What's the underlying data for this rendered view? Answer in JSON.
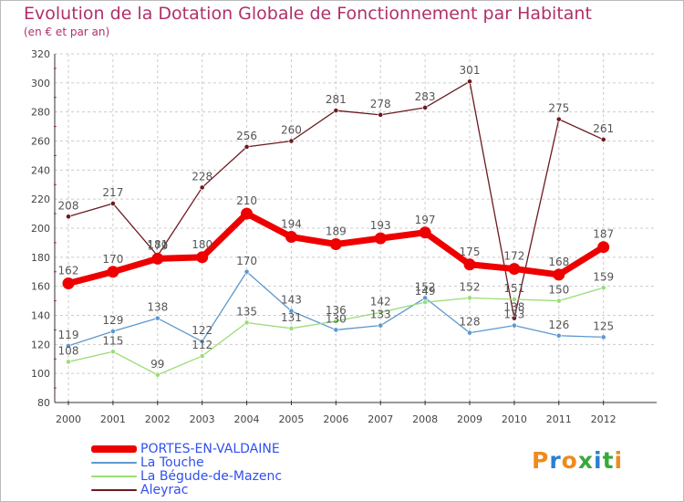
{
  "chart_data": {
    "type": "line",
    "title": "Evolution de la Dotation Globale de Fonctionnement par Habitant",
    "subtitle": "(en € et par an)",
    "xlabel": "",
    "ylabel": "",
    "x": [
      "2000",
      "2001",
      "2002",
      "2003",
      "2004",
      "2005",
      "2006",
      "2007",
      "2008",
      "2009",
      "2010",
      "2011",
      "2012"
    ],
    "ylim": [
      80,
      320
    ],
    "yticks": [
      "80",
      "100",
      "120",
      "140",
      "160",
      "180",
      "200",
      "220",
      "240",
      "260",
      "280",
      "300",
      "320"
    ],
    "grid": true,
    "legend_position": "bottom-left",
    "series": [
      {
        "name": "Aleyrac",
        "color": "#6b1a20",
        "values": [
          208,
          217,
          181,
          228,
          256,
          260,
          281,
          278,
          283,
          301,
          138,
          275,
          261
        ],
        "labels": [
          "208",
          "217",
          "181",
          "228",
          "256",
          "260",
          "281",
          "278",
          "283",
          "301",
          "138",
          "275",
          "261"
        ]
      },
      {
        "name": "La Touche",
        "color": "#5e98cc",
        "values": [
          119,
          129,
          138,
          122,
          170,
          143,
          130,
          133,
          152,
          128,
          133,
          126,
          125
        ],
        "labels": [
          "119",
          "129",
          "138",
          "122",
          "170",
          "143",
          "130",
          "133",
          "152",
          "128",
          "133",
          "126",
          "125"
        ]
      },
      {
        "name": "La Bégude-de-Mazenc",
        "color": "#99dd77",
        "values": [
          108,
          115,
          99,
          112,
          135,
          131,
          136,
          142,
          149,
          152,
          151,
          150,
          159
        ],
        "labels": [
          "108",
          "115",
          "99",
          "112",
          "135",
          "131",
          "136",
          "142",
          "149",
          "152",
          "151",
          "150",
          "159"
        ]
      },
      {
        "name": "PORTES-EN-VALDAINE",
        "color": "#ee0000",
        "values": [
          162,
          170,
          179,
          180,
          210,
          194,
          189,
          193,
          197,
          175,
          172,
          168,
          187
        ],
        "labels": [
          "162",
          "170",
          "179",
          "180",
          "210",
          "194",
          "189",
          "193",
          "197",
          "175",
          "172",
          "168",
          "187"
        ]
      }
    ]
  },
  "legend": {
    "items": [
      {
        "label": "PORTES-EN-VALDAINE",
        "color": "#ee0000"
      },
      {
        "label": "La Touche",
        "color": "#5e98cc"
      },
      {
        "label": "La Bégude-de-Mazenc",
        "color": "#99dd77"
      },
      {
        "label": "Aleyrac",
        "color": "#6b1a20"
      }
    ]
  },
  "watermark": {
    "text": "Proxiti",
    "letters": [
      {
        "ch": "P",
        "color": "#f08a1c"
      },
      {
        "ch": "r",
        "color": "#2a7fd4"
      },
      {
        "ch": "o",
        "color": "#f08a1c"
      },
      {
        "ch": "x",
        "color": "#3aa83a"
      },
      {
        "ch": "i",
        "color": "#2a7fd4"
      },
      {
        "ch": "t",
        "color": "#3aa83a"
      },
      {
        "ch": "i",
        "color": "#f08a1c"
      }
    ]
  }
}
